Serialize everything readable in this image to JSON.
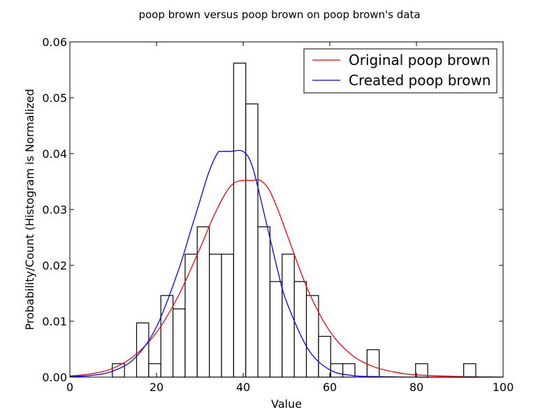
{
  "chart_data": {
    "type": "bar",
    "title": "poop brown versus poop brown on poop brown's data",
    "xlabel": "Value",
    "ylabel": "Probability/Count (Histogram is Normalized",
    "xlim": [
      0,
      100
    ],
    "ylim": [
      0,
      0.06
    ],
    "xticks": [
      "0",
      "20",
      "40",
      "60",
      "80",
      "100"
    ],
    "yticks": [
      "0.00",
      "0.01",
      "0.02",
      "0.03",
      "0.04",
      "0.05",
      "0.06"
    ],
    "legend_position": "top-right",
    "histogram": {
      "bin_width": 2.8,
      "bins": [
        {
          "x": 9.8,
          "height": 0.0024
        },
        {
          "x": 15.4,
          "height": 0.0097
        },
        {
          "x": 18.2,
          "height": 0.0024
        },
        {
          "x": 21.0,
          "height": 0.0146
        },
        {
          "x": 23.8,
          "height": 0.0122
        },
        {
          "x": 26.6,
          "height": 0.022
        },
        {
          "x": 29.4,
          "height": 0.0269
        },
        {
          "x": 32.2,
          "height": 0.022
        },
        {
          "x": 35.0,
          "height": 0.022
        },
        {
          "x": 37.8,
          "height": 0.0562
        },
        {
          "x": 40.6,
          "height": 0.0489
        },
        {
          "x": 43.4,
          "height": 0.0269
        },
        {
          "x": 46.2,
          "height": 0.0171
        },
        {
          "x": 49.0,
          "height": 0.022
        },
        {
          "x": 51.8,
          "height": 0.0171
        },
        {
          "x": 54.6,
          "height": 0.0146
        },
        {
          "x": 57.4,
          "height": 0.0073
        },
        {
          "x": 60.2,
          "height": 0.0024
        },
        {
          "x": 63.0,
          "height": 0.0024
        },
        {
          "x": 68.6,
          "height": 0.0049
        },
        {
          "x": 79.8,
          "height": 0.0024
        },
        {
          "x": 90.9,
          "height": 0.0024
        }
      ]
    },
    "series": [
      {
        "name": "Original poop brown",
        "color": "#ff0000",
        "x": [
          0,
          5,
          10,
          15,
          20,
          25,
          30,
          33,
          36,
          38,
          40,
          42,
          44,
          46,
          48,
          50,
          55,
          60,
          65,
          70,
          75,
          80,
          90,
          100
        ],
        "y": [
          0.0002,
          0.0006,
          0.0016,
          0.0039,
          0.008,
          0.0145,
          0.023,
          0.0285,
          0.033,
          0.0348,
          0.0352,
          0.0352,
          0.0352,
          0.0335,
          0.03,
          0.0258,
          0.0155,
          0.0082,
          0.004,
          0.0019,
          0.0009,
          0.0004,
          0.0001,
          0.0
        ]
      },
      {
        "name": "Created poop brown",
        "color": "#0000ff",
        "x": [
          0,
          5,
          10,
          15,
          20,
          25,
          28,
          30,
          32,
          34,
          35,
          37,
          40,
          42,
          44,
          46,
          48,
          50,
          55,
          60,
          65,
          70,
          80,
          100
        ],
        "y": [
          0.0001,
          0.0003,
          0.0011,
          0.0034,
          0.009,
          0.019,
          0.0265,
          0.0315,
          0.0365,
          0.04,
          0.0404,
          0.0404,
          0.0404,
          0.038,
          0.032,
          0.0255,
          0.019,
          0.0135,
          0.005,
          0.0013,
          0.0003,
          0.0001,
          0.0,
          0.0
        ]
      }
    ]
  }
}
